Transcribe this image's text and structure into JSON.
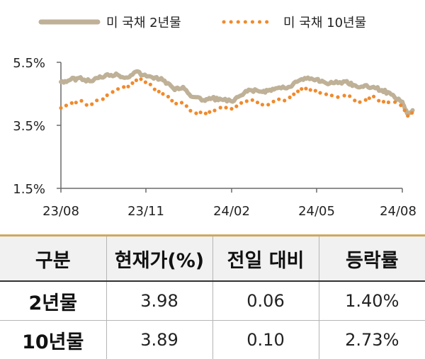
{
  "legend": [
    {
      "label": "미 국채 2년물",
      "style": "solid",
      "color": "#bfb197"
    },
    {
      "label": "미 국채 10년물",
      "style": "dotted",
      "color": "#f08a2c"
    }
  ],
  "chart_data": {
    "type": "line",
    "title": "",
    "xlabel": "",
    "ylabel": "",
    "x_ticks": [
      "23/08",
      "23/11",
      "24/02",
      "24/05",
      "24/08"
    ],
    "x_range_months": [
      "2023-08",
      "2024-08"
    ],
    "y_ticks": [
      "5.5%",
      "3.5%",
      "1.5%"
    ],
    "ylim": [
      1.5,
      5.5
    ],
    "grid": false,
    "legend_position": "top",
    "series": [
      {
        "name": "미 국채 2년물",
        "style": "solid",
        "color": "#bfb197",
        "points": [
          [
            "2023-08-01",
            4.88
          ],
          [
            "2023-08-10",
            4.93
          ],
          [
            "2023-08-20",
            5.0
          ],
          [
            "2023-09-01",
            4.9
          ],
          [
            "2023-09-10",
            5.0
          ],
          [
            "2023-09-20",
            5.12
          ],
          [
            "2023-10-01",
            5.1
          ],
          [
            "2023-10-10",
            5.02
          ],
          [
            "2023-10-20",
            5.2
          ],
          [
            "2023-11-01",
            5.05
          ],
          [
            "2023-11-10",
            5.02
          ],
          [
            "2023-11-20",
            4.92
          ],
          [
            "2023-12-01",
            4.62
          ],
          [
            "2023-12-10",
            4.72
          ],
          [
            "2023-12-20",
            4.4
          ],
          [
            "2024-01-01",
            4.3
          ],
          [
            "2024-01-10",
            4.36
          ],
          [
            "2024-01-20",
            4.32
          ],
          [
            "2024-02-01",
            4.25
          ],
          [
            "2024-02-10",
            4.45
          ],
          [
            "2024-02-20",
            4.62
          ],
          [
            "2024-03-01",
            4.57
          ],
          [
            "2024-03-10",
            4.6
          ],
          [
            "2024-03-20",
            4.68
          ],
          [
            "2024-04-01",
            4.72
          ],
          [
            "2024-04-10",
            4.88
          ],
          [
            "2024-04-20",
            4.98
          ],
          [
            "2024-05-01",
            4.96
          ],
          [
            "2024-05-10",
            4.86
          ],
          [
            "2024-05-20",
            4.84
          ],
          [
            "2024-06-01",
            4.89
          ],
          [
            "2024-06-10",
            4.78
          ],
          [
            "2024-06-20",
            4.72
          ],
          [
            "2024-07-01",
            4.72
          ],
          [
            "2024-07-10",
            4.62
          ],
          [
            "2024-07-20",
            4.48
          ],
          [
            "2024-08-01",
            4.25
          ],
          [
            "2024-08-06",
            3.88
          ],
          [
            "2024-08-12",
            3.98
          ]
        ]
      },
      {
        "name": "미 국채 10년물",
        "style": "dotted",
        "color": "#f08a2c",
        "points": [
          [
            "2023-08-01",
            4.05
          ],
          [
            "2023-08-10",
            4.15
          ],
          [
            "2023-08-20",
            4.25
          ],
          [
            "2023-09-01",
            4.15
          ],
          [
            "2023-09-10",
            4.28
          ],
          [
            "2023-09-20",
            4.45
          ],
          [
            "2023-10-01",
            4.65
          ],
          [
            "2023-10-10",
            4.7
          ],
          [
            "2023-10-20",
            4.95
          ],
          [
            "2023-11-01",
            4.9
          ],
          [
            "2023-11-10",
            4.62
          ],
          [
            "2023-11-20",
            4.42
          ],
          [
            "2023-12-01",
            4.25
          ],
          [
            "2023-12-10",
            4.18
          ],
          [
            "2023-12-20",
            3.9
          ],
          [
            "2024-01-01",
            3.85
          ],
          [
            "2024-01-10",
            3.98
          ],
          [
            "2024-01-20",
            4.1
          ],
          [
            "2024-02-01",
            4.0
          ],
          [
            "2024-02-10",
            4.2
          ],
          [
            "2024-02-20",
            4.3
          ],
          [
            "2024-03-01",
            4.2
          ],
          [
            "2024-03-10",
            4.15
          ],
          [
            "2024-03-20",
            4.28
          ],
          [
            "2024-04-01",
            4.32
          ],
          [
            "2024-04-10",
            4.55
          ],
          [
            "2024-04-20",
            4.68
          ],
          [
            "2024-05-01",
            4.62
          ],
          [
            "2024-05-10",
            4.48
          ],
          [
            "2024-05-20",
            4.45
          ],
          [
            "2024-06-01",
            4.45
          ],
          [
            "2024-06-10",
            4.3
          ],
          [
            "2024-06-20",
            4.25
          ],
          [
            "2024-07-01",
            4.42
          ],
          [
            "2024-07-10",
            4.2
          ],
          [
            "2024-07-20",
            4.25
          ],
          [
            "2024-08-01",
            4.1
          ],
          [
            "2024-08-06",
            3.82
          ],
          [
            "2024-08-12",
            3.89
          ]
        ]
      }
    ]
  },
  "table": {
    "headers": [
      "구분",
      "현재가(%)",
      "전일 대비",
      "등락률"
    ],
    "rows": [
      [
        "2년물",
        "3.98",
        "0.06",
        "1.40%"
      ],
      [
        "10년물",
        "3.89",
        "0.10",
        "2.73%"
      ]
    ]
  }
}
